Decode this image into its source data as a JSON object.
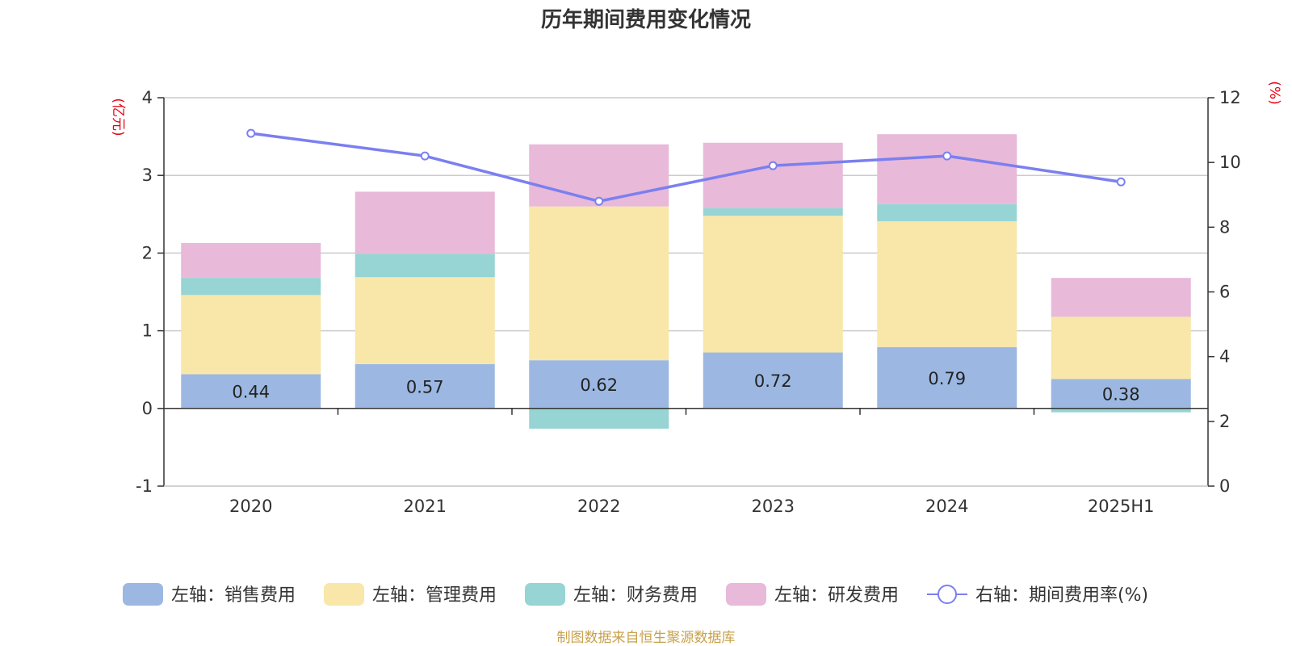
{
  "chart_data": {
    "type": "bar",
    "title": "历年期间费用变化情况",
    "categories": [
      "2020",
      "2021",
      "2022",
      "2023",
      "2024",
      "2025H1"
    ],
    "left_axis": {
      "unit_label": "(亿元)",
      "min": -1,
      "max": 4,
      "ticks": [
        "-1",
        "0",
        "1",
        "2",
        "3",
        "4"
      ]
    },
    "right_axis": {
      "unit_label": "(%)",
      "min": 0,
      "max": 12,
      "ticks": [
        "0",
        "2",
        "4",
        "6",
        "8",
        "10",
        "12"
      ]
    },
    "grid": true,
    "stack_order": [
      "sales",
      "management",
      "finance",
      "rnd"
    ],
    "series": [
      {
        "key": "sales",
        "name": "左轴：销售费用",
        "color": "#9cb8e2",
        "values": [
          0.44,
          0.57,
          0.62,
          0.72,
          0.79,
          0.38
        ],
        "show_labels": true
      },
      {
        "key": "management",
        "name": "左轴：管理费用",
        "color": "#f8e7a8",
        "values": [
          1.02,
          1.12,
          1.98,
          1.76,
          1.62,
          0.8
        ]
      },
      {
        "key": "finance",
        "name": "左轴：财务费用",
        "color": "#97d4d4",
        "values": [
          0.22,
          0.3,
          -0.26,
          0.1,
          0.22,
          -0.05
        ]
      },
      {
        "key": "rnd",
        "name": "左轴：研发费用",
        "color": "#e8b9d9",
        "values": [
          0.45,
          0.8,
          0.8,
          0.84,
          0.9,
          0.5
        ]
      }
    ],
    "line": {
      "name": "右轴：期间费用率(%)",
      "color": "#7b7ff0",
      "values": [
        10.9,
        10.2,
        8.8,
        9.9,
        10.2,
        9.4
      ]
    },
    "legend_position": "bottom",
    "source": "制图数据来自恒生聚源数据库"
  }
}
